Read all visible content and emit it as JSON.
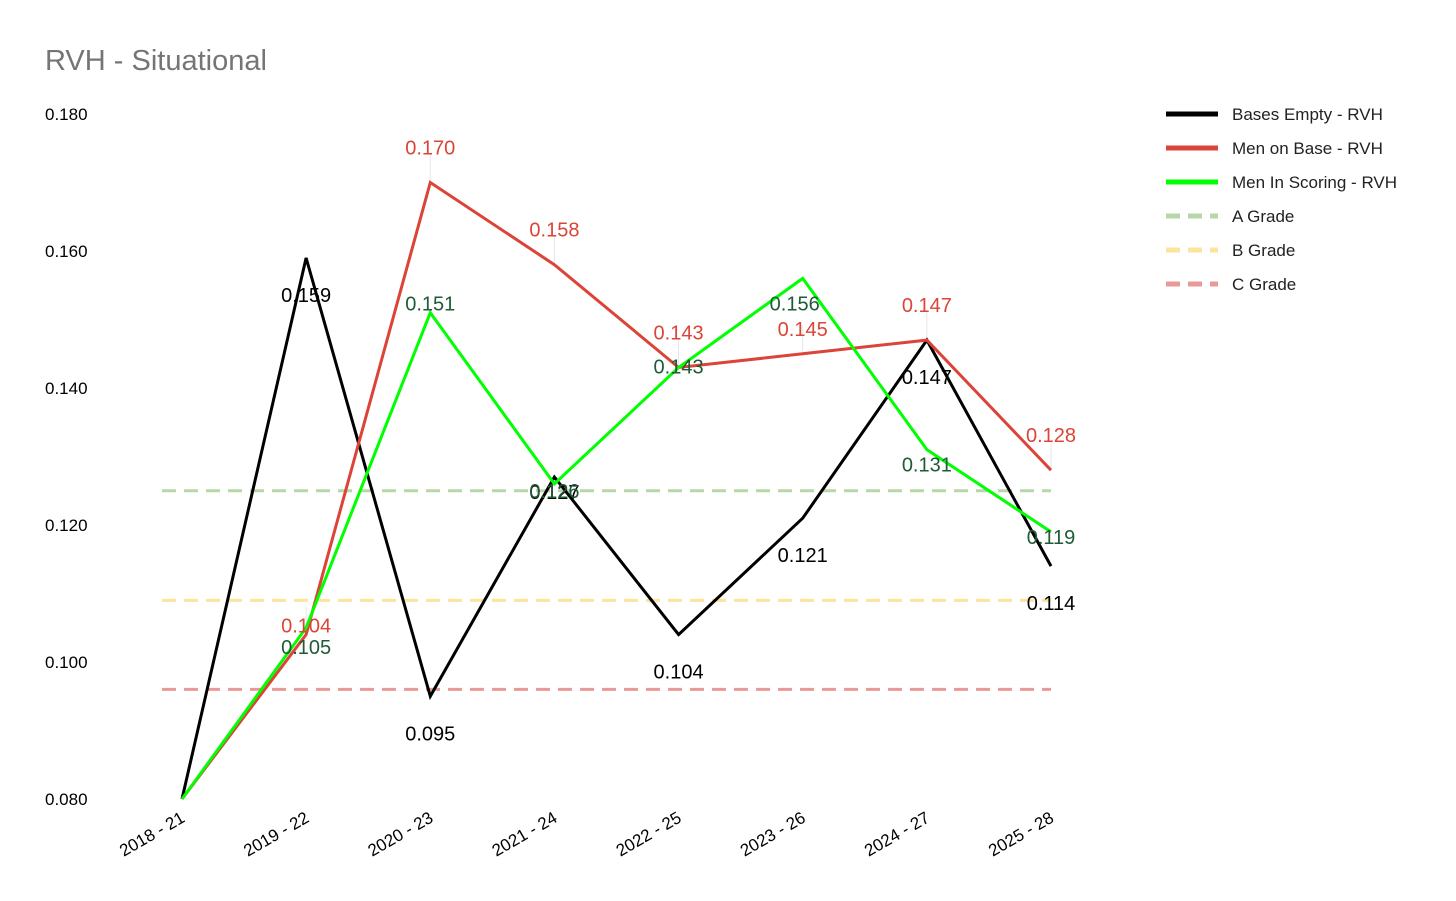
{
  "chart_data": {
    "type": "line",
    "title": "RVH - Situational",
    "xlabel": "",
    "ylabel": "",
    "ylim": [
      0.08,
      0.18
    ],
    "yticks": [
      "0.080",
      "0.100",
      "0.120",
      "0.140",
      "0.160",
      "0.180"
    ],
    "ytick_values": [
      0.08,
      0.1,
      0.12,
      0.14,
      0.16,
      0.18
    ],
    "categories": [
      "2018 - 21",
      "2019 - 22",
      "2020 - 23",
      "2021 - 24",
      "2022 - 25",
      "2023 - 26",
      "2024 - 27",
      "2025 - 28"
    ],
    "grid": false,
    "legend_position": "right",
    "series": [
      {
        "name": "Bases Empty - RVH",
        "color": "#000000",
        "label_color": "#000000",
        "values": [
          0.08,
          0.159,
          0.095,
          0.127,
          0.104,
          0.121,
          0.147,
          0.114
        ],
        "labels": [
          "",
          "0.159",
          "0.095",
          "0.127",
          "0.104",
          "0.121",
          "0.147",
          "0.114"
        ]
      },
      {
        "name": "Men on Base - RVH",
        "color": "#db4437",
        "label_color": "#db4437",
        "values": [
          0.08,
          0.104,
          0.17,
          0.158,
          0.143,
          0.145,
          0.147,
          0.128
        ],
        "labels": [
          "",
          "0.104",
          "0.170",
          "0.158",
          "0.143",
          "0.145",
          "0.147",
          "0.128"
        ]
      },
      {
        "name": "Men In Scoring - RVH",
        "color": "#00ff00",
        "label_color": "#1e5b36",
        "values": [
          0.08,
          0.105,
          0.151,
          0.126,
          0.143,
          0.156,
          0.131,
          0.119
        ],
        "labels": [
          "",
          "0.105",
          "0.151",
          "0.126",
          "0.143",
          "0.156",
          "0.131",
          "0.119"
        ]
      }
    ],
    "reference_lines": [
      {
        "name": "A Grade",
        "value": 0.125,
        "color": "#b7d7a8"
      },
      {
        "name": "B Grade",
        "value": 0.109,
        "color": "#fde49c"
      },
      {
        "name": "C Grade",
        "value": 0.096,
        "color": "#ea9999"
      }
    ]
  }
}
